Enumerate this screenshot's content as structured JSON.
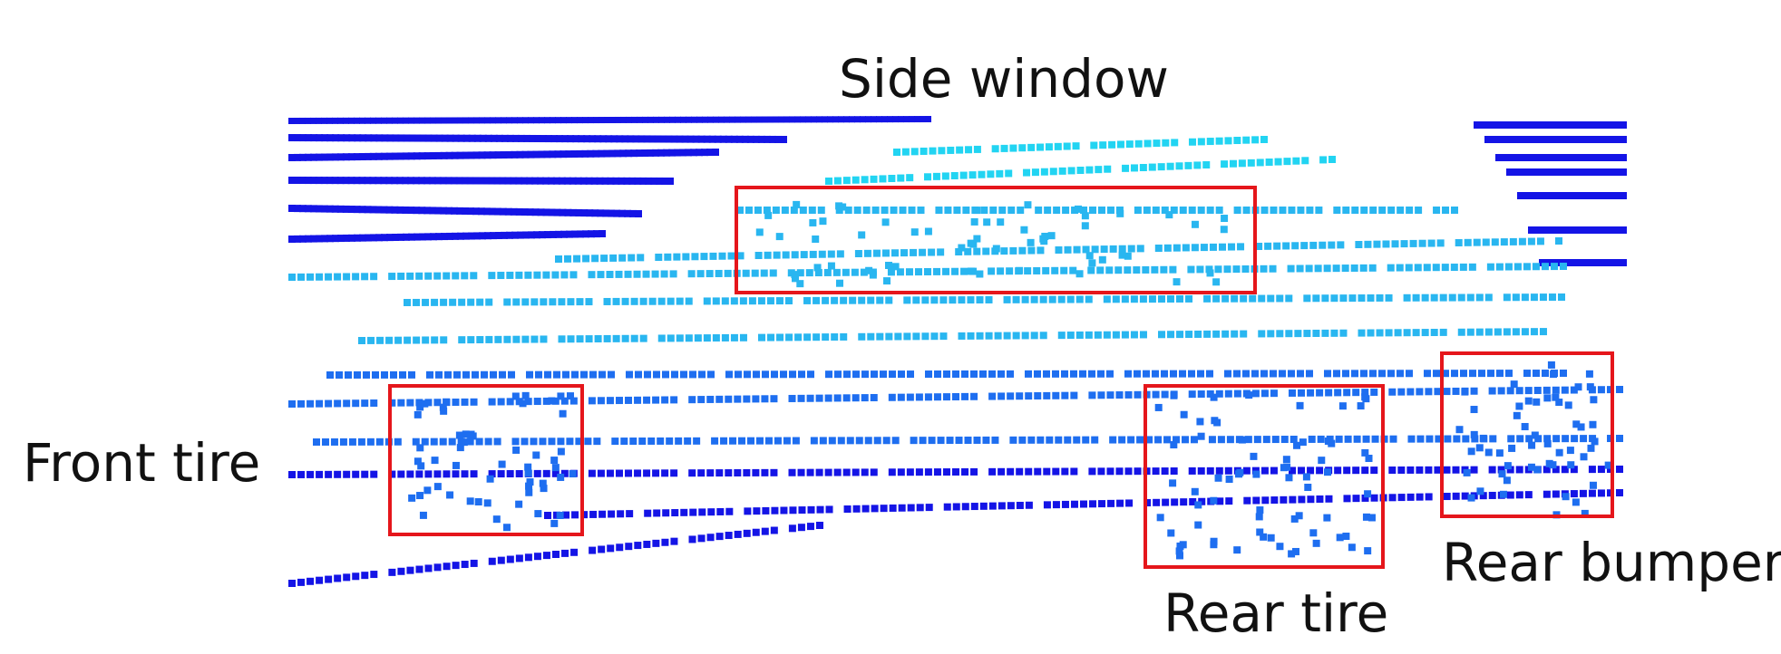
{
  "labels": {
    "side_window": "Side window",
    "front_tire": "Front tire",
    "rear_tire": "Rear tire",
    "rear_bumper": "Rear bumper"
  },
  "colors": {
    "far_points": "#1414e6",
    "mid_points": "#1e6ef0",
    "near_points": "#29b6f0",
    "window_points": "#22d4f2",
    "highlight_box": "#e5161b",
    "label_text": "#111111"
  }
}
